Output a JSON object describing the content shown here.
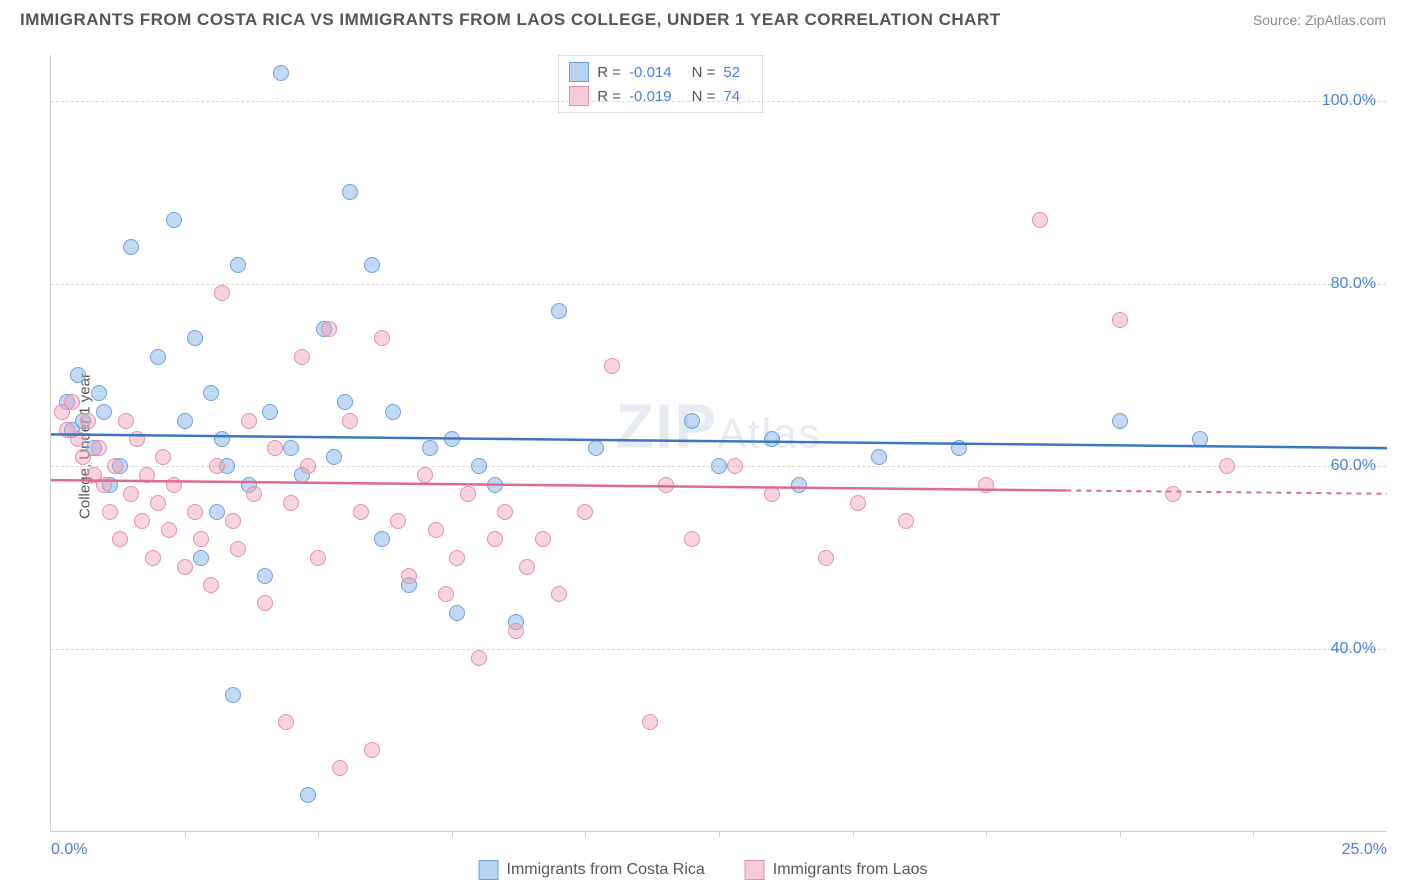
{
  "title": "IMMIGRANTS FROM COSTA RICA VS IMMIGRANTS FROM LAOS COLLEGE, UNDER 1 YEAR CORRELATION CHART",
  "source_label": "Source:",
  "source_name": "ZipAtlas.com",
  "y_axis_label": "College, Under 1 year",
  "watermark_big": "ZIP",
  "watermark_small": "Atlas",
  "chart": {
    "type": "scatter",
    "x_range": [
      0,
      25
    ],
    "y_range": [
      20,
      105
    ],
    "x_ticks": [
      0,
      25
    ],
    "x_tick_labels": [
      "0.0%",
      "25.0%"
    ],
    "x_minor_ticks": [
      2.5,
      5,
      7.5,
      10,
      12.5,
      15,
      17.5,
      20,
      22.5
    ],
    "y_ticks": [
      40,
      60,
      80,
      100
    ],
    "y_tick_labels": [
      "40.0%",
      "60.0%",
      "80.0%",
      "100.0%"
    ],
    "series": [
      {
        "name": "Immigrants from Costa Rica",
        "color_fill": "rgba(120,170,230,0.45)",
        "color_stroke": "#6fa0db",
        "legend_swatch_fill": "#b7d3f2",
        "legend_swatch_stroke": "#6fa0db",
        "R": "-0.014",
        "N": "52",
        "trend": {
          "y_start": 63.5,
          "y_end": 62.0,
          "color": "#3b76c4",
          "dash_after_x": 25
        },
        "marker_radius": 8,
        "points": [
          [
            0.3,
            67
          ],
          [
            0.4,
            64
          ],
          [
            0.5,
            70
          ],
          [
            0.6,
            65
          ],
          [
            0.8,
            62
          ],
          [
            0.9,
            68
          ],
          [
            1.0,
            66
          ],
          [
            1.1,
            58
          ],
          [
            1.3,
            60
          ],
          [
            1.5,
            84
          ],
          [
            2.0,
            72
          ],
          [
            2.3,
            87
          ],
          [
            2.5,
            65
          ],
          [
            2.7,
            74
          ],
          [
            2.8,
            50
          ],
          [
            3.0,
            68
          ],
          [
            3.1,
            55
          ],
          [
            3.2,
            63
          ],
          [
            3.3,
            60
          ],
          [
            3.4,
            35
          ],
          [
            3.5,
            82
          ],
          [
            3.7,
            58
          ],
          [
            4.0,
            48
          ],
          [
            4.1,
            66
          ],
          [
            4.3,
            103
          ],
          [
            4.5,
            62
          ],
          [
            4.7,
            59
          ],
          [
            4.8,
            24
          ],
          [
            5.1,
            75
          ],
          [
            5.3,
            61
          ],
          [
            5.5,
            67
          ],
          [
            5.6,
            90
          ],
          [
            6.0,
            82
          ],
          [
            6.2,
            52
          ],
          [
            6.4,
            66
          ],
          [
            6.7,
            47
          ],
          [
            7.1,
            62
          ],
          [
            7.5,
            63
          ],
          [
            7.6,
            44
          ],
          [
            8.0,
            60
          ],
          [
            8.3,
            58
          ],
          [
            8.7,
            43
          ],
          [
            9.5,
            77
          ],
          [
            10.2,
            62
          ],
          [
            12.0,
            65
          ],
          [
            12.5,
            60
          ],
          [
            13.5,
            63
          ],
          [
            14.0,
            58
          ],
          [
            15.5,
            61
          ],
          [
            17.0,
            62
          ],
          [
            20.0,
            65
          ],
          [
            21.5,
            63
          ]
        ]
      },
      {
        "name": "Immigrants from Laos",
        "color_fill": "rgba(240,160,185,0.45)",
        "color_stroke": "#e48fad",
        "legend_swatch_fill": "#f6cad8",
        "legend_swatch_stroke": "#e48fad",
        "R": "-0.019",
        "N": "74",
        "trend": {
          "y_start": 58.5,
          "y_end": 57.0,
          "color": "#dd6a96",
          "dash_after_x": 19
        },
        "marker_radius": 8,
        "points": [
          [
            0.2,
            66
          ],
          [
            0.3,
            64
          ],
          [
            0.4,
            67
          ],
          [
            0.5,
            63
          ],
          [
            0.6,
            61
          ],
          [
            0.7,
            65
          ],
          [
            0.8,
            59
          ],
          [
            0.9,
            62
          ],
          [
            1.0,
            58
          ],
          [
            1.1,
            55
          ],
          [
            1.2,
            60
          ],
          [
            1.3,
            52
          ],
          [
            1.4,
            65
          ],
          [
            1.5,
            57
          ],
          [
            1.6,
            63
          ],
          [
            1.7,
            54
          ],
          [
            1.8,
            59
          ],
          [
            1.9,
            50
          ],
          [
            2.0,
            56
          ],
          [
            2.1,
            61
          ],
          [
            2.2,
            53
          ],
          [
            2.3,
            58
          ],
          [
            2.5,
            49
          ],
          [
            2.7,
            55
          ],
          [
            2.8,
            52
          ],
          [
            3.0,
            47
          ],
          [
            3.1,
            60
          ],
          [
            3.2,
            79
          ],
          [
            3.4,
            54
          ],
          [
            3.5,
            51
          ],
          [
            3.7,
            65
          ],
          [
            3.8,
            57
          ],
          [
            4.0,
            45
          ],
          [
            4.2,
            62
          ],
          [
            4.4,
            32
          ],
          [
            4.5,
            56
          ],
          [
            4.7,
            72
          ],
          [
            4.8,
            60
          ],
          [
            5.0,
            50
          ],
          [
            5.2,
            75
          ],
          [
            5.4,
            27
          ],
          [
            5.6,
            65
          ],
          [
            5.8,
            55
          ],
          [
            6.0,
            29
          ],
          [
            6.2,
            74
          ],
          [
            6.5,
            54
          ],
          [
            6.7,
            48
          ],
          [
            7.0,
            59
          ],
          [
            7.2,
            53
          ],
          [
            7.4,
            46
          ],
          [
            7.6,
            50
          ],
          [
            7.8,
            57
          ],
          [
            8.0,
            39
          ],
          [
            8.3,
            52
          ],
          [
            8.5,
            55
          ],
          [
            8.7,
            42
          ],
          [
            8.9,
            49
          ],
          [
            9.2,
            52
          ],
          [
            9.5,
            46
          ],
          [
            10.0,
            55
          ],
          [
            10.5,
            71
          ],
          [
            11.2,
            32
          ],
          [
            11.5,
            58
          ],
          [
            12.0,
            52
          ],
          [
            12.8,
            60
          ],
          [
            13.5,
            57
          ],
          [
            14.5,
            50
          ],
          [
            15.1,
            56
          ],
          [
            16.0,
            54
          ],
          [
            17.5,
            58
          ],
          [
            18.5,
            87
          ],
          [
            20.0,
            76
          ],
          [
            21.0,
            57
          ],
          [
            22.0,
            60
          ]
        ]
      }
    ]
  },
  "legend_bottom": [
    {
      "label": "Immigrants from Costa Rica",
      "fill": "#b7d3f2",
      "stroke": "#6fa0db"
    },
    {
      "label": "Immigrants from Laos",
      "fill": "#f6cad8",
      "stroke": "#e48fad"
    }
  ]
}
